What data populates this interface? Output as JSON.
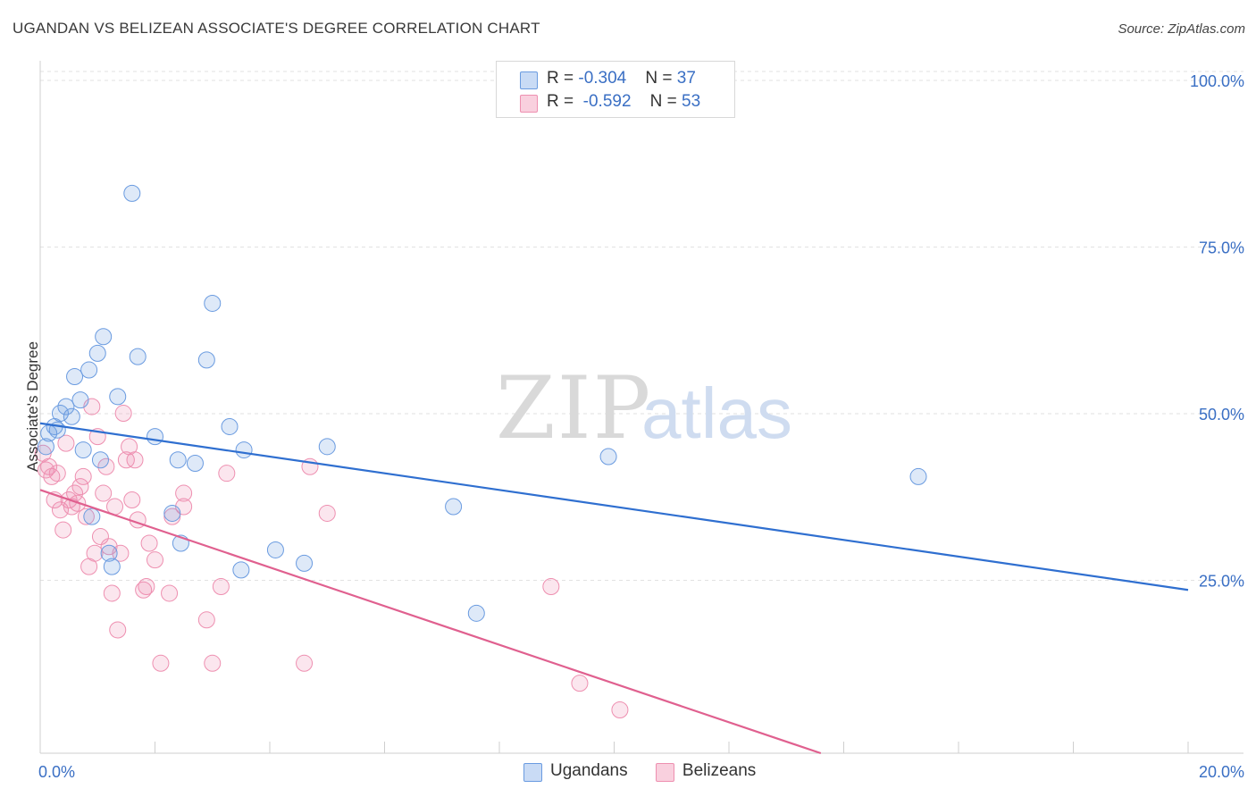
{
  "chart_data": {
    "type": "scatter",
    "title": "UGANDAN VS BELIZEAN ASSOCIATE'S DEGREE CORRELATION CHART",
    "source": "Source: ZipAtlas.com",
    "xlabel": "",
    "ylabel": "Associate's Degree",
    "xlim": [
      0,
      20
    ],
    "ylim": [
      0,
      100
    ],
    "x_tick_labels": [
      "0.0%",
      "20.0%"
    ],
    "y_tick_labels": [
      "100.0%",
      "75.0%",
      "50.0%",
      "25.0%"
    ],
    "y_tick_values": [
      100,
      75,
      50,
      25
    ],
    "watermark": {
      "part1": "ZIP",
      "part2": "atlas"
    },
    "colors": {
      "ugandans": "#6a9be0",
      "belizeans": "#ee8fb0",
      "ugandans_line": "#2f6fd0",
      "belizeans_line": "#e0608f",
      "axis_label": "#3a6fc4"
    },
    "legend_top": [
      {
        "r_label": "R = ",
        "r_value": "-0.304",
        "n_label": "N = ",
        "n_value": "37"
      },
      {
        "r_label": "R = ",
        "r_value": "-0.592",
        "n_label": "N = ",
        "n_value": "53"
      }
    ],
    "series": [
      {
        "name": "Ugandans",
        "trend": {
          "x1": 0.0,
          "y1": 49.5,
          "x2": 20.0,
          "y2": 24.5
        },
        "points": [
          [
            0.15,
            48.0
          ],
          [
            0.25,
            49.0
          ],
          [
            0.35,
            51.0
          ],
          [
            0.45,
            52.0
          ],
          [
            0.55,
            50.5
          ],
          [
            0.6,
            56.5
          ],
          [
            0.7,
            53.0
          ],
          [
            0.75,
            45.5
          ],
          [
            0.85,
            57.5
          ],
          [
            0.9,
            35.5
          ],
          [
            1.0,
            60.0
          ],
          [
            1.05,
            44.0
          ],
          [
            1.1,
            62.5
          ],
          [
            1.2,
            30.0
          ],
          [
            1.25,
            28.0
          ],
          [
            1.35,
            53.5
          ],
          [
            1.6,
            84.0
          ],
          [
            1.7,
            59.5
          ],
          [
            2.0,
            47.5
          ],
          [
            2.3,
            36.0
          ],
          [
            2.4,
            44.0
          ],
          [
            2.45,
            31.5
          ],
          [
            2.7,
            43.5
          ],
          [
            2.9,
            59.0
          ],
          [
            3.0,
            67.5
          ],
          [
            3.3,
            49.0
          ],
          [
            3.5,
            27.5
          ],
          [
            3.55,
            45.5
          ],
          [
            4.1,
            30.5
          ],
          [
            4.6,
            28.5
          ],
          [
            5.0,
            46.0
          ],
          [
            7.2,
            37.0
          ],
          [
            7.6,
            21.0
          ],
          [
            9.9,
            44.5
          ],
          [
            15.3,
            41.5
          ],
          [
            0.1,
            46.0
          ],
          [
            0.3,
            48.5
          ]
        ]
      },
      {
        "name": "Belizeans",
        "trend": {
          "x1": 0.0,
          "y1": 39.5,
          "x2": 13.6,
          "y2": 0.0
        },
        "points": [
          [
            0.05,
            45.0
          ],
          [
            0.1,
            42.5
          ],
          [
            0.15,
            43.0
          ],
          [
            0.2,
            41.5
          ],
          [
            0.25,
            38.0
          ],
          [
            0.3,
            42.0
          ],
          [
            0.35,
            36.5
          ],
          [
            0.4,
            33.5
          ],
          [
            0.45,
            46.5
          ],
          [
            0.5,
            38.0
          ],
          [
            0.55,
            37.0
          ],
          [
            0.6,
            39.0
          ],
          [
            0.65,
            37.5
          ],
          [
            0.7,
            40.0
          ],
          [
            0.75,
            41.5
          ],
          [
            0.8,
            35.5
          ],
          [
            0.85,
            28.0
          ],
          [
            0.9,
            52.0
          ],
          [
            0.95,
            30.0
          ],
          [
            1.0,
            47.5
          ],
          [
            1.05,
            32.5
          ],
          [
            1.1,
            39.0
          ],
          [
            1.15,
            43.0
          ],
          [
            1.2,
            31.0
          ],
          [
            1.25,
            24.0
          ],
          [
            1.3,
            37.0
          ],
          [
            1.35,
            18.5
          ],
          [
            1.4,
            30.0
          ],
          [
            1.45,
            51.0
          ],
          [
            1.5,
            44.0
          ],
          [
            1.55,
            46.0
          ],
          [
            1.6,
            38.0
          ],
          [
            1.65,
            44.0
          ],
          [
            1.7,
            35.0
          ],
          [
            1.8,
            24.5
          ],
          [
            1.85,
            25.0
          ],
          [
            1.9,
            31.5
          ],
          [
            2.0,
            29.0
          ],
          [
            2.1,
            13.5
          ],
          [
            2.25,
            24.0
          ],
          [
            2.3,
            35.5
          ],
          [
            2.5,
            37.0
          ],
          [
            2.5,
            39.0
          ],
          [
            2.9,
            20.0
          ],
          [
            3.0,
            13.5
          ],
          [
            3.15,
            25.0
          ],
          [
            3.25,
            42.0
          ],
          [
            4.6,
            13.5
          ],
          [
            4.7,
            43.0
          ],
          [
            5.0,
            36.0
          ],
          [
            8.9,
            25.0
          ],
          [
            9.4,
            10.5
          ],
          [
            10.1,
            6.5
          ]
        ]
      }
    ]
  }
}
